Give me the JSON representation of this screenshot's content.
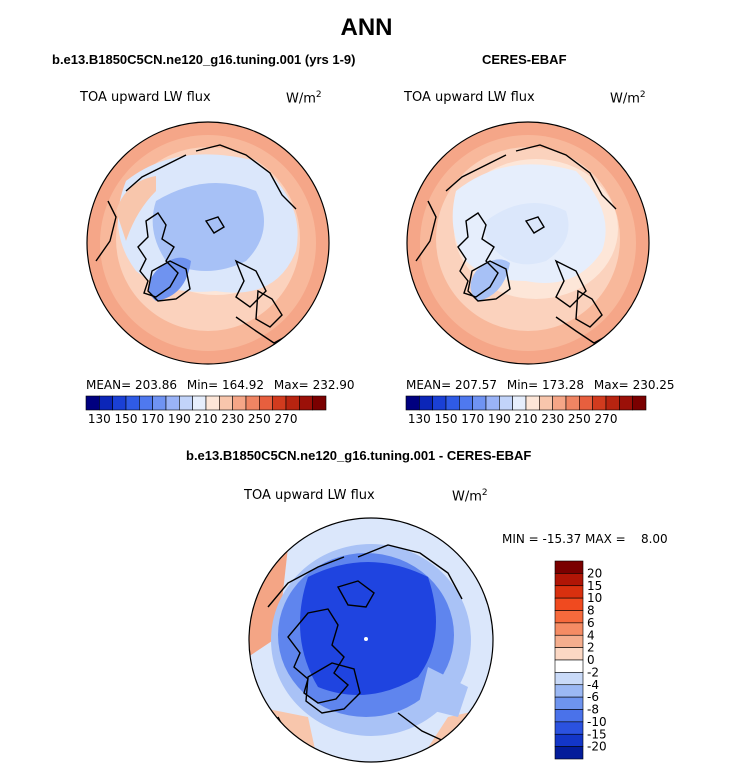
{
  "title": "ANN",
  "panels": [
    {
      "case_name": "b.e13.B1850C5CN.ne120_g16.tuning.001 (yrs 1-9)",
      "variable": "TOA upward LW flux",
      "units": "W/m",
      "units_sup": "2",
      "mean_label": "MEAN=",
      "mean_value": "203.86",
      "min_label": "Min=",
      "min_value": "164.92",
      "max_label": "Max=",
      "max_value": "232.90"
    },
    {
      "case_name": "CERES-EBAF",
      "variable": "TOA upward LW flux",
      "units": "W/m",
      "units_sup": "2",
      "mean_label": "MEAN=",
      "mean_value": "207.57",
      "min_label": "Min=",
      "min_value": "173.28",
      "max_label": "Max=",
      "max_value": "230.25"
    },
    {
      "case_name": "b.e13.B1850C5CN.ne120_g16.tuning.001 - CERES-EBAF",
      "variable": "TOA upward LW flux",
      "units": "W/m",
      "units_sup": "2",
      "minmax_text": "MIN = -15.37 MAX =    8.00"
    }
  ],
  "colorbar_main": {
    "tick_labels": [
      "130",
      "150",
      "170",
      "190",
      "210",
      "230",
      "250",
      "270"
    ],
    "colors": [
      "#00007f",
      "#0b26b8",
      "#1a40d6",
      "#2f5be6",
      "#4f79ef",
      "#6f93f3",
      "#9ab3f7",
      "#c2d4fa",
      "#e6eefc",
      "#fde6d8",
      "#f8c6ac",
      "#f5a687",
      "#ef8563",
      "#e75f3e",
      "#d23b1e",
      "#b82410",
      "#9b1008",
      "#7a0000"
    ]
  },
  "colorbar_diff": {
    "tick_labels": [
      "20",
      "15",
      "10",
      "8",
      "6",
      "4",
      "2",
      "0",
      "-2",
      "-4",
      "-6",
      "-8",
      "-10",
      "-15",
      "-20"
    ],
    "colors": [
      "#7a0000",
      "#b01506",
      "#d8300f",
      "#f04a1f",
      "#f66a3c",
      "#f58c64",
      "#f5ae8e",
      "#fcd8c4",
      "#ffffff",
      "#c9daf8",
      "#9bb8f4",
      "#6e94ef",
      "#4a72ea",
      "#2b52e0",
      "#1336c8",
      "#031c9a"
    ]
  },
  "map_palette": {
    "ocean_warm": "#f5a688",
    "ocean_mid": "#fbd2bd",
    "cool_light": "#dbe7fb",
    "cool_mid": "#a7c1f6",
    "cool_dark": "#6f93f0",
    "diff_dark": "#1f44e0",
    "diff_mid": "#5f85ee",
    "diff_light": "#a9c2f6",
    "diff_warm": "#f4a585",
    "coast": "#000000"
  }
}
